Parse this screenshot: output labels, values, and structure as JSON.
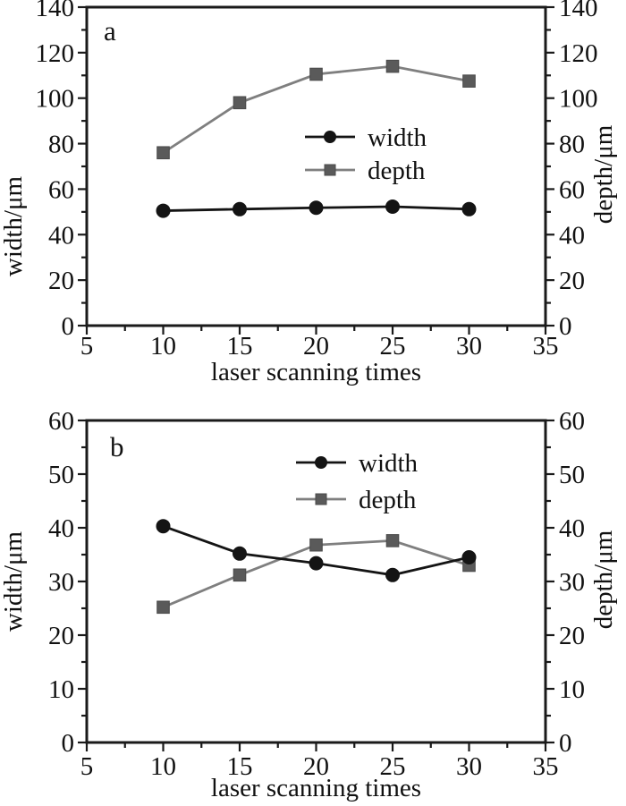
{
  "figure": {
    "background": "#ffffff",
    "text_color": "#111111",
    "frame_color": "#1a1a1a"
  },
  "chart_data": [
    {
      "panel_label": "a",
      "type": "line",
      "title": "",
      "xlabel": "laser scanning times",
      "ylabel_left": "width/μm",
      "ylabel_right": "depth/μm",
      "x": [
        10,
        15,
        20,
        25,
        30
      ],
      "series": [
        {
          "name": "width",
          "axis": "left",
          "color": "#141414",
          "marker": "circle",
          "marker_color": "#141414",
          "values": [
            50.5,
            51.2,
            51.8,
            52.3,
            51.2
          ]
        },
        {
          "name": "depth",
          "axis": "right",
          "color": "#7f7f7f",
          "marker": "square",
          "marker_color": "#5a5a5a",
          "values": [
            76,
            98,
            110.5,
            114,
            107.5
          ]
        }
      ],
      "xlim": [
        5,
        35
      ],
      "ylim": [
        0,
        140
      ],
      "x_major_step": 5,
      "x_minor_step": 2.5,
      "y_major_step": 20,
      "y_minor_step": 10,
      "grid": false,
      "legend": {
        "entries": [
          "width",
          "depth"
        ],
        "position": "inside upper middle"
      }
    },
    {
      "panel_label": "b",
      "type": "line",
      "title": "",
      "xlabel": "laser scanning times",
      "ylabel_left": "width/μm",
      "ylabel_right": "depth/μm",
      "x": [
        10,
        15,
        20,
        25,
        30
      ],
      "series": [
        {
          "name": "width",
          "axis": "left",
          "color": "#141414",
          "marker": "circle",
          "marker_color": "#141414",
          "values": [
            40.3,
            35.2,
            33.4,
            31.2,
            34.5
          ]
        },
        {
          "name": "depth",
          "axis": "right",
          "color": "#7f7f7f",
          "marker": "square",
          "marker_color": "#5a5a5a",
          "values": [
            25.2,
            31.2,
            36.8,
            37.6,
            33.0
          ]
        }
      ],
      "xlim": [
        5,
        35
      ],
      "ylim": [
        0,
        60
      ],
      "x_major_step": 5,
      "x_minor_step": 2.5,
      "y_major_step": 10,
      "y_minor_step": 5,
      "grid": false,
      "legend": {
        "entries": [
          "width",
          "depth"
        ],
        "position": "inside upper middle"
      }
    }
  ]
}
